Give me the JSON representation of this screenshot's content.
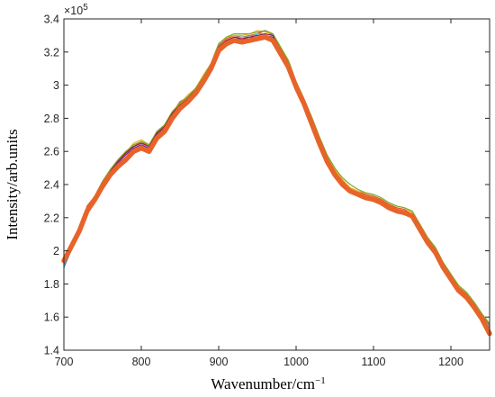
{
  "chart_data": {
    "type": "line",
    "title": "",
    "xlabel": "Wavenumber/cm",
    "xlabel_superscript": "−1",
    "ylabel": "Intensity/arb.units",
    "y_exponent_base": "×10",
    "y_exponent_power": "5",
    "xlim": [
      700,
      1250
    ],
    "ylim": [
      1.4,
      3.4
    ],
    "y_scale_factor": 100000,
    "xticks": [
      700,
      800,
      900,
      1000,
      1100,
      1200
    ],
    "xtick_labels": [
      "700",
      "800",
      "900",
      "1000",
      "1100",
      "1200"
    ],
    "yticks": [
      1.4,
      1.6,
      1.8,
      2.0,
      2.2,
      2.4,
      2.6,
      2.8,
      3.0,
      3.2,
      3.4
    ],
    "ytick_labels": [
      "1.4",
      "1.6",
      "1.8",
      "2",
      "2.2",
      "2.4",
      "2.6",
      "2.8",
      "3",
      "3.2",
      "3.4"
    ],
    "grid": false,
    "legend": "none",
    "x": [
      700,
      710,
      720,
      730,
      740,
      750,
      760,
      770,
      780,
      790,
      800,
      810,
      820,
      830,
      840,
      850,
      860,
      870,
      880,
      890,
      900,
      910,
      920,
      930,
      940,
      950,
      960,
      970,
      980,
      990,
      1000,
      1010,
      1020,
      1030,
      1040,
      1050,
      1060,
      1070,
      1080,
      1090,
      1100,
      1110,
      1120,
      1130,
      1140,
      1150,
      1160,
      1170,
      1180,
      1190,
      1200,
      1210,
      1220,
      1230,
      1240,
      1250
    ],
    "series": [
      {
        "color": "#0072bd",
        "width": 1.2,
        "values": [
          1.9,
          2.01,
          2.12,
          2.24,
          2.32,
          2.41,
          2.47,
          2.53,
          2.58,
          2.62,
          2.64,
          2.62,
          2.7,
          2.74,
          2.82,
          2.87,
          2.92,
          2.96,
          3.03,
          3.1,
          3.22,
          3.26,
          3.28,
          3.28,
          3.28,
          3.31,
          3.33,
          3.3,
          3.21,
          3.13,
          3.0,
          2.9,
          2.78,
          2.66,
          2.55,
          2.47,
          2.41,
          2.37,
          2.35,
          2.33,
          2.32,
          2.3,
          2.27,
          2.25,
          2.24,
          2.22,
          2.14,
          2.06,
          2.0,
          1.91,
          1.84,
          1.77,
          1.73,
          1.67,
          1.6,
          1.53
        ]
      },
      {
        "color": "#d95319",
        "width": 1.2,
        "values": [
          1.93,
          2.04,
          2.13,
          2.27,
          2.33,
          2.42,
          2.49,
          2.55,
          2.6,
          2.63,
          2.66,
          2.63,
          2.72,
          2.76,
          2.83,
          2.9,
          2.93,
          2.98,
          3.05,
          3.12,
          3.24,
          3.28,
          3.3,
          3.29,
          3.3,
          3.31,
          3.33,
          3.31,
          3.22,
          3.14,
          3.01,
          2.91,
          2.79,
          2.67,
          2.56,
          2.48,
          2.42,
          2.38,
          2.36,
          2.34,
          2.33,
          2.31,
          2.28,
          2.26,
          2.25,
          2.22,
          2.15,
          2.07,
          2.01,
          1.92,
          1.85,
          1.78,
          1.74,
          1.68,
          1.61,
          1.55
        ]
      },
      {
        "color": "#edb120",
        "width": 1.2,
        "values": [
          1.92,
          2.02,
          2.12,
          2.25,
          2.31,
          2.4,
          2.48,
          2.54,
          2.59,
          2.65,
          2.67,
          2.64,
          2.71,
          2.76,
          2.84,
          2.89,
          2.94,
          2.98,
          3.06,
          3.13,
          3.25,
          3.29,
          3.3,
          3.3,
          3.31,
          3.33,
          3.32,
          3.31,
          3.23,
          3.15,
          3.02,
          2.92,
          2.8,
          2.68,
          2.57,
          2.49,
          2.43,
          2.38,
          2.36,
          2.35,
          2.34,
          2.32,
          2.29,
          2.27,
          2.26,
          2.23,
          2.16,
          2.08,
          2.02,
          1.93,
          1.86,
          1.79,
          1.75,
          1.69,
          1.62,
          1.56
        ]
      },
      {
        "color": "#7e2f8e",
        "width": 1.2,
        "values": [
          1.91,
          2.02,
          2.11,
          2.24,
          2.31,
          2.4,
          2.47,
          2.53,
          2.58,
          2.62,
          2.64,
          2.62,
          2.7,
          2.74,
          2.82,
          2.87,
          2.91,
          2.96,
          3.03,
          3.1,
          3.22,
          3.26,
          3.27,
          3.27,
          3.28,
          3.29,
          3.3,
          3.29,
          3.2,
          3.12,
          2.99,
          2.89,
          2.77,
          2.65,
          2.54,
          2.46,
          2.4,
          2.36,
          2.34,
          2.32,
          2.31,
          2.29,
          2.26,
          2.24,
          2.23,
          2.21,
          2.13,
          2.05,
          1.99,
          1.9,
          1.83,
          1.76,
          1.72,
          1.66,
          1.59,
          1.52
        ]
      },
      {
        "color": "#77ac30",
        "width": 1.2,
        "values": [
          1.92,
          2.03,
          2.13,
          2.26,
          2.33,
          2.42,
          2.49,
          2.55,
          2.6,
          2.64,
          2.66,
          2.64,
          2.72,
          2.76,
          2.84,
          2.89,
          2.93,
          2.98,
          3.05,
          3.13,
          3.25,
          3.29,
          3.31,
          3.31,
          3.31,
          3.32,
          3.33,
          3.31,
          3.23,
          3.15,
          3.02,
          2.92,
          2.81,
          2.69,
          2.58,
          2.5,
          2.44,
          2.4,
          2.37,
          2.35,
          2.34,
          2.32,
          2.29,
          2.27,
          2.26,
          2.24,
          2.16,
          2.08,
          2.02,
          1.93,
          1.86,
          1.79,
          1.75,
          1.69,
          1.62,
          1.56
        ]
      },
      {
        "color": "#4dbeee",
        "width": 1.2,
        "values": [
          1.91,
          2.02,
          2.12,
          2.24,
          2.32,
          2.41,
          2.48,
          2.54,
          2.59,
          2.63,
          2.65,
          2.63,
          2.71,
          2.75,
          2.83,
          2.88,
          2.92,
          2.97,
          3.04,
          3.11,
          3.23,
          3.27,
          3.29,
          3.29,
          3.29,
          3.31,
          3.31,
          3.3,
          3.21,
          3.13,
          3.0,
          2.9,
          2.78,
          2.66,
          2.55,
          2.47,
          2.41,
          2.37,
          2.35,
          2.33,
          2.32,
          2.3,
          2.27,
          2.25,
          2.24,
          2.22,
          2.14,
          2.06,
          2.0,
          1.91,
          1.84,
          1.77,
          1.73,
          1.67,
          1.6,
          1.54
        ]
      },
      {
        "color": "#a2142f",
        "width": 1.2,
        "values": [
          1.92,
          2.02,
          2.12,
          2.25,
          2.32,
          2.41,
          2.48,
          2.54,
          2.59,
          2.63,
          2.65,
          2.63,
          2.71,
          2.75,
          2.83,
          2.88,
          2.92,
          2.97,
          3.04,
          3.11,
          3.23,
          3.27,
          3.29,
          3.28,
          3.29,
          3.3,
          3.31,
          3.3,
          3.21,
          3.13,
          3.0,
          2.9,
          2.78,
          2.66,
          2.55,
          2.47,
          2.41,
          2.37,
          2.35,
          2.33,
          2.32,
          2.3,
          2.27,
          2.25,
          2.24,
          2.22,
          2.14,
          2.06,
          2.0,
          1.91,
          1.84,
          1.77,
          1.73,
          1.67,
          1.6,
          1.53
        ]
      },
      {
        "color": "#e8632a",
        "width": 5.5,
        "values": [
          1.94,
          2.03,
          2.12,
          2.24,
          2.31,
          2.39,
          2.46,
          2.51,
          2.55,
          2.6,
          2.62,
          2.6,
          2.68,
          2.72,
          2.8,
          2.86,
          2.9,
          2.95,
          3.02,
          3.1,
          3.21,
          3.25,
          3.27,
          3.26,
          3.27,
          3.28,
          3.29,
          3.27,
          3.19,
          3.11,
          2.99,
          2.89,
          2.77,
          2.65,
          2.54,
          2.46,
          2.4,
          2.36,
          2.34,
          2.32,
          2.31,
          2.29,
          2.26,
          2.24,
          2.23,
          2.21,
          2.13,
          2.05,
          1.99,
          1.9,
          1.83,
          1.76,
          1.72,
          1.66,
          1.59,
          1.5
        ]
      }
    ]
  }
}
